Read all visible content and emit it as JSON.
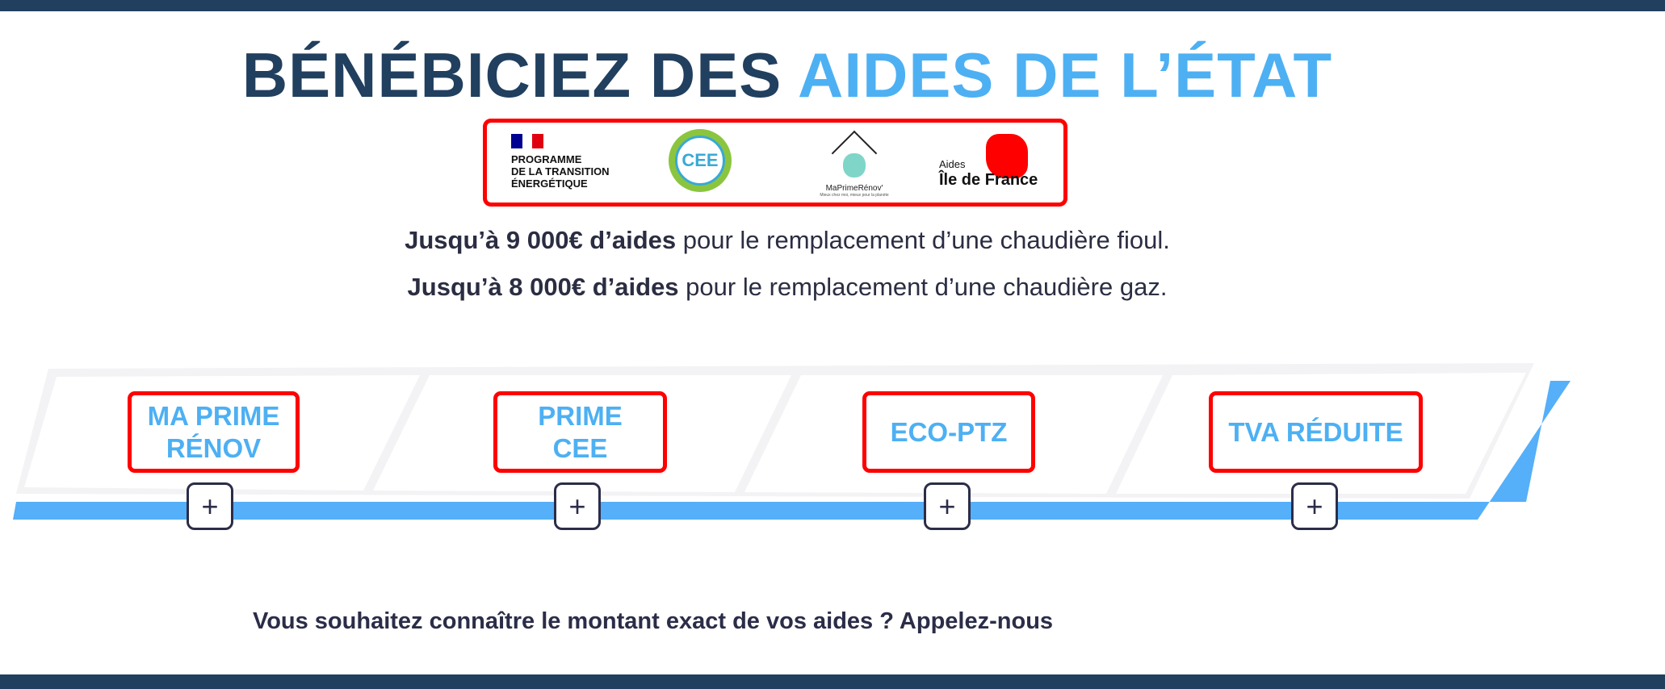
{
  "header": {
    "title_part1": "BÉNÉBICIEZ DES ",
    "title_part2": "AIDES DE L’ÉTAT"
  },
  "logos": {
    "programme": "PROGRAMME\nDE LA TRANSITION\nÉNERGÉTIQUE",
    "cee": "CEE",
    "maprimerenov": "MaPrimeRénov'",
    "maprimerenov_tagline": "Mieux chez moi, mieux pour la planète",
    "idf_small": "Aides",
    "idf_big": "Île de France"
  },
  "intro": [
    {
      "bold": "Jusqu’à 9 000€ d’aides",
      "rest": " pour le remplacement d’une chaudière fioul."
    },
    {
      "bold": "Jusqu’à 8 000€ d’aides",
      "rest": " pour le remplacement d’une chaudière gaz."
    }
  ],
  "aides": [
    {
      "label": "MA PRIME RÉNOV",
      "button": "+"
    },
    {
      "label": "PRIME CEE",
      "button": "+"
    },
    {
      "label": "ECO-PTZ",
      "button": "+"
    },
    {
      "label": "TVA RÉDUITE",
      "button": "+"
    }
  ],
  "cta": "Vous souhaitez connaître le montant exact de vos aides ? Appelez-nous",
  "colors": {
    "navy": "#213f5e",
    "accent": "#4db0f3",
    "highlight": "#ff0000"
  }
}
